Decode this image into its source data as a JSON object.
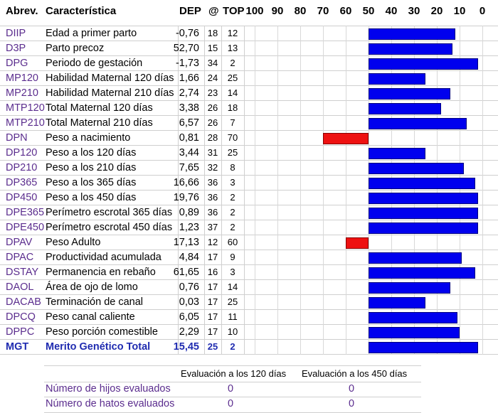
{
  "header": {
    "abbr": "Abrev.",
    "characteristic": "Característica",
    "dep": "DEP",
    "accuracy": "@",
    "top": "TOP",
    "scale": [
      "100",
      "90",
      "80",
      "70",
      "60",
      "50",
      "40",
      "30",
      "20",
      "10",
      "0"
    ]
  },
  "rows": [
    {
      "abbr": "DIIP",
      "name": "Edad a primer parto",
      "dep": "-0,76",
      "acc": "18",
      "top": "12",
      "bar_color": "blue"
    },
    {
      "abbr": "D3P",
      "name": "Parto precoz",
      "dep": "52,70",
      "acc": "15",
      "top": "13",
      "bar_color": "blue"
    },
    {
      "abbr": "DPG",
      "name": "Periodo de gestación",
      "dep": "-1,73",
      "acc": "34",
      "top": "2",
      "bar_color": "blue"
    },
    {
      "abbr": "MP120",
      "name": "Habilidad Maternal 120 días",
      "dep": "1,66",
      "acc": "24",
      "top": "25",
      "bar_color": "blue"
    },
    {
      "abbr": "MP210",
      "name": "Habilidad Maternal 210 días",
      "dep": "2,74",
      "acc": "23",
      "top": "14",
      "bar_color": "blue"
    },
    {
      "abbr": "MTP120",
      "name": "Total Maternal 120 días",
      "dep": "3,38",
      "acc": "26",
      "top": "18",
      "bar_color": "blue"
    },
    {
      "abbr": "MTP210",
      "name": "Total Maternal 210 días",
      "dep": "6,57",
      "acc": "26",
      "top": "7",
      "bar_color": "blue"
    },
    {
      "abbr": "DPN",
      "name": "Peso a nacimiento",
      "dep": "0,81",
      "acc": "28",
      "top": "70",
      "bar_color": "red"
    },
    {
      "abbr": "DP120",
      "name": "Peso a los 120 días",
      "dep": "3,44",
      "acc": "31",
      "top": "25",
      "bar_color": "blue"
    },
    {
      "abbr": "DP210",
      "name": "Peso a los 210 días",
      "dep": "7,65",
      "acc": "32",
      "top": "8",
      "bar_color": "blue"
    },
    {
      "abbr": "DP365",
      "name": "Peso a los 365 días",
      "dep": "16,66",
      "acc": "36",
      "top": "3",
      "bar_color": "blue"
    },
    {
      "abbr": "DP450",
      "name": "Peso a los 450 días",
      "dep": "19,76",
      "acc": "36",
      "top": "2",
      "bar_color": "blue"
    },
    {
      "abbr": "DPE365",
      "name": "Perímetro escrotal 365 días",
      "dep": "0,89",
      "acc": "36",
      "top": "2",
      "bar_color": "blue"
    },
    {
      "abbr": "DPE450",
      "name": "Perímetro escrotal 450 días",
      "dep": "1,23",
      "acc": "37",
      "top": "2",
      "bar_color": "blue"
    },
    {
      "abbr": "DPAV",
      "name": "Peso Adulto",
      "dep": "17,13",
      "acc": "12",
      "top": "60",
      "bar_color": "red"
    },
    {
      "abbr": "DPAC",
      "name": "Productividad acumulada",
      "dep": "4,84",
      "acc": "17",
      "top": "9",
      "bar_color": "blue"
    },
    {
      "abbr": "DSTAY",
      "name": "Permanencia en rebaño",
      "dep": "61,65",
      "acc": "16",
      "top": "3",
      "bar_color": "blue"
    },
    {
      "abbr": "DAOL",
      "name": "Área de ojo de lomo",
      "dep": "0,76",
      "acc": "17",
      "top": "14",
      "bar_color": "blue"
    },
    {
      "abbr": "DACAB",
      "name": "Terminación de canal",
      "dep": "0,03",
      "acc": "17",
      "top": "25",
      "bar_color": "blue"
    },
    {
      "abbr": "DPCQ",
      "name": "Peso canal caliente",
      "dep": "6,05",
      "acc": "17",
      "top": "11",
      "bar_color": "blue"
    },
    {
      "abbr": "DPPC",
      "name": "Peso porción comestible",
      "dep": "2,29",
      "acc": "17",
      "top": "10",
      "bar_color": "blue"
    },
    {
      "abbr": "MGT",
      "name": "Merito Genético Total",
      "dep": "15,45",
      "acc": "25",
      "top": "2",
      "bar_color": "blue",
      "total": true
    }
  ],
  "colors": {
    "positive": "#0000ee",
    "negative": "#ee1111",
    "abbr": "#5b2d8e",
    "total": "#1f2bb0"
  },
  "footer": {
    "col1": "Evaluación a los 120 días",
    "col2": "Evaluación a los 450 días",
    "rows": [
      {
        "label": "Número de hijos evaluados",
        "v120": "0",
        "v450": "0"
      },
      {
        "label": "Número de hatos evaluados",
        "v120": "0",
        "v450": "0"
      }
    ]
  }
}
